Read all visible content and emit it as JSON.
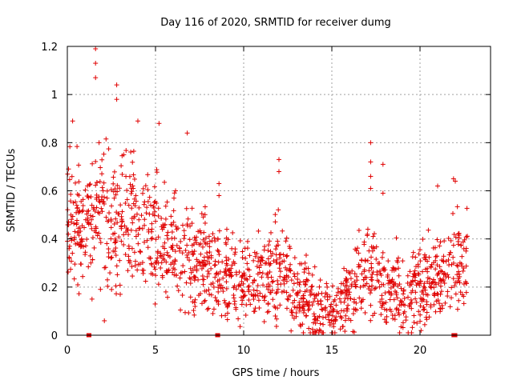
{
  "chart_data": {
    "type": "scatter",
    "title": "Day 116 of 2020, SRMTID for receiver dumg",
    "xlabel": "GPS time / hours",
    "ylabel": "SRMTID / TECUs",
    "xlim": [
      0,
      24
    ],
    "ylim": [
      0,
      1.2
    ],
    "x_ticks": [
      0,
      5,
      10,
      15,
      20
    ],
    "y_ticks": [
      0,
      0.2,
      0.4,
      0.6,
      0.8,
      1,
      1.2
    ],
    "y_tick_labels": [
      "0",
      "0.2",
      "0.4",
      "0.6",
      "0.8",
      "1",
      "1.2"
    ],
    "grid": true,
    "marker": "+",
    "color": "#e00000",
    "trend": [
      {
        "x": 0.0,
        "y": 0.5
      },
      {
        "x": 1.0,
        "y": 0.44
      },
      {
        "x": 2.0,
        "y": 0.5
      },
      {
        "x": 3.0,
        "y": 0.5
      },
      {
        "x": 4.0,
        "y": 0.46
      },
      {
        "x": 5.0,
        "y": 0.42
      },
      {
        "x": 6.0,
        "y": 0.35
      },
      {
        "x": 7.0,
        "y": 0.31
      },
      {
        "x": 8.0,
        "y": 0.27
      },
      {
        "x": 9.0,
        "y": 0.24
      },
      {
        "x": 10.0,
        "y": 0.22
      },
      {
        "x": 11.0,
        "y": 0.22
      },
      {
        "x": 12.0,
        "y": 0.27
      },
      {
        "x": 13.0,
        "y": 0.2
      },
      {
        "x": 14.0,
        "y": 0.12
      },
      {
        "x": 14.5,
        "y": 0.07
      },
      {
        "x": 15.0,
        "y": 0.09
      },
      {
        "x": 16.0,
        "y": 0.16
      },
      {
        "x": 17.0,
        "y": 0.28
      },
      {
        "x": 18.0,
        "y": 0.22
      },
      {
        "x": 19.0,
        "y": 0.18
      },
      {
        "x": 20.0,
        "y": 0.2
      },
      {
        "x": 21.0,
        "y": 0.24
      },
      {
        "x": 22.0,
        "y": 0.28
      },
      {
        "x": 22.7,
        "y": 0.33
      }
    ],
    "outliers": [
      {
        "x": 1.6,
        "y": 1.19
      },
      {
        "x": 1.6,
        "y": 1.13
      },
      {
        "x": 1.6,
        "y": 1.07
      },
      {
        "x": 2.8,
        "y": 1.04
      },
      {
        "x": 2.8,
        "y": 0.98
      },
      {
        "x": 0.3,
        "y": 0.89
      },
      {
        "x": 4.0,
        "y": 0.89
      },
      {
        "x": 5.2,
        "y": 0.88
      },
      {
        "x": 6.8,
        "y": 0.84
      },
      {
        "x": 1.8,
        "y": 0.8
      },
      {
        "x": 3.2,
        "y": 0.75
      },
      {
        "x": 12.0,
        "y": 0.73
      },
      {
        "x": 12.0,
        "y": 0.68
      },
      {
        "x": 17.2,
        "y": 0.8
      },
      {
        "x": 17.2,
        "y": 0.72
      },
      {
        "x": 17.2,
        "y": 0.66
      },
      {
        "x": 17.2,
        "y": 0.61
      },
      {
        "x": 17.9,
        "y": 0.71
      },
      {
        "x": 17.9,
        "y": 0.59
      },
      {
        "x": 8.6,
        "y": 0.63
      },
      {
        "x": 8.6,
        "y": 0.58
      },
      {
        "x": 21.9,
        "y": 0.65
      },
      {
        "x": 22.0,
        "y": 0.64
      },
      {
        "x": 21.0,
        "y": 0.62
      },
      {
        "x": 1.4,
        "y": 0.15
      },
      {
        "x": 2.1,
        "y": 0.06
      },
      {
        "x": 3.0,
        "y": 0.17
      }
    ],
    "zero_points_x": [
      1.2,
      1.25,
      8.5,
      8.55,
      21.9,
      22.0
    ]
  }
}
